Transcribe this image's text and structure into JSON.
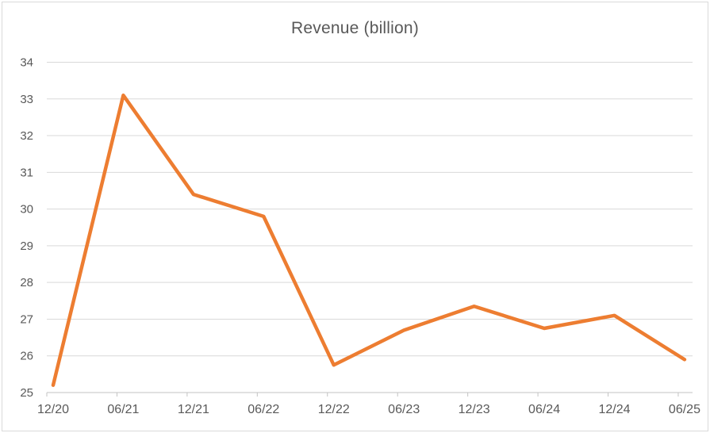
{
  "chart_data": {
    "type": "line",
    "title": "Revenue (billion)",
    "categories": [
      "12/20",
      "06/21",
      "12/21",
      "06/22",
      "12/22",
      "06/23",
      "12/23",
      "06/24",
      "12/24",
      "06/25"
    ],
    "series": [
      {
        "name": "Revenue",
        "values": [
          25.2,
          33.1,
          30.4,
          29.8,
          25.75,
          26.7,
          27.35,
          26.75,
          27.1,
          25.9
        ]
      }
    ],
    "xlabel": "",
    "ylabel": "",
    "ylim": [
      25,
      34
    ],
    "y_tick_step": 1,
    "y_tick_labels": [
      "25",
      "26",
      "27",
      "28",
      "29",
      "30",
      "31",
      "32",
      "33",
      "34"
    ],
    "grid": true,
    "legend_position": "none",
    "markers": false
  },
  "colors": {
    "line": "#ED7D31",
    "gridline": "#D9D9D9",
    "axis_line": "#C3C3C3",
    "tick": "#C3C3C3",
    "label": "#595959",
    "title": "#595959",
    "border": "#D9D9D9",
    "background": "#FFFFFF"
  }
}
